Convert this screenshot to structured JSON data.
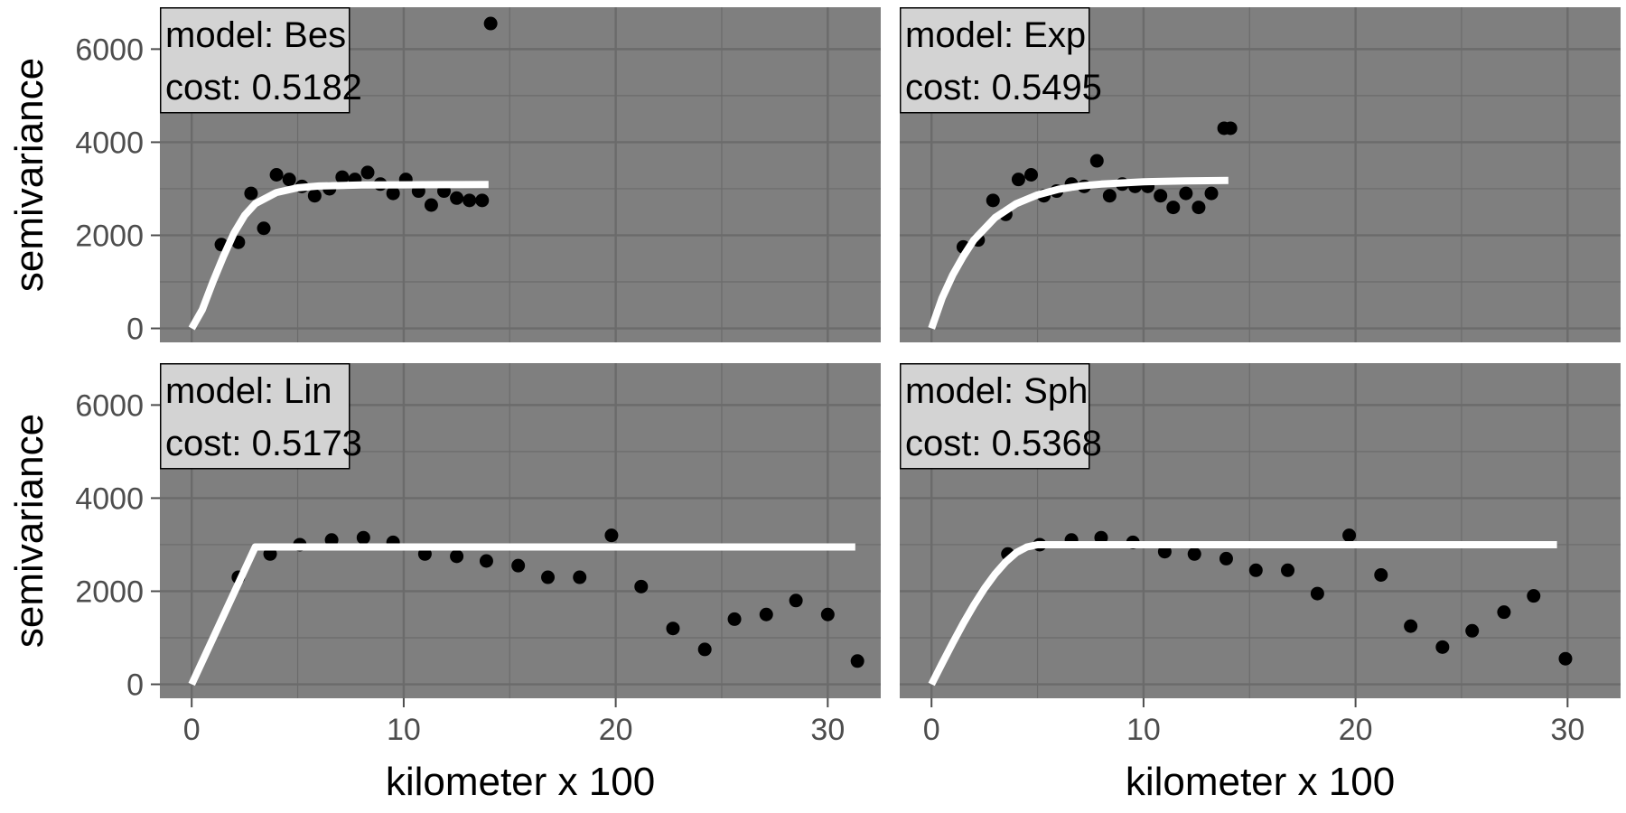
{
  "chart_data": [
    {
      "type": "scatter",
      "model_label": "model: Bes",
      "cost_label": "cost: 0.5182",
      "ylabel": "semivariance",
      "xlabel": "",
      "xlim": [
        -1.5,
        32.5
      ],
      "ylim": [
        -300,
        6900
      ],
      "x_ticks": [
        0,
        10,
        20,
        30
      ],
      "y_ticks": [
        0,
        2000,
        4000,
        6000
      ],
      "grid": true,
      "series": [
        {
          "kind": "points",
          "x": [
            1.4,
            2.2,
            2.8,
            3.4,
            4.0,
            4.6,
            5.2,
            5.8,
            6.5,
            7.1,
            7.7,
            8.3,
            8.9,
            9.5,
            10.1,
            10.7,
            11.3,
            11.9,
            12.5,
            13.1,
            13.7,
            14.1
          ],
          "y": [
            1800,
            1850,
            2900,
            2150,
            3300,
            3200,
            3050,
            2850,
            3000,
            3250,
            3200,
            3350,
            3100,
            2900,
            3200,
            2950,
            2650,
            2950,
            2800,
            2750,
            2750,
            6550
          ]
        },
        {
          "kind": "fit",
          "x": [
            0,
            0.5,
            1,
            1.5,
            2,
            2.5,
            3,
            4,
            5,
            6,
            8,
            10,
            12,
            14
          ],
          "y": [
            0,
            400,
            1000,
            1550,
            2050,
            2430,
            2680,
            2920,
            3020,
            3060,
            3080,
            3085,
            3088,
            3090
          ]
        }
      ]
    },
    {
      "type": "scatter",
      "model_label": "model: Exp",
      "cost_label": "cost: 0.5495",
      "ylabel": "",
      "xlabel": "",
      "xlim": [
        -1.5,
        32.5
      ],
      "ylim": [
        -300,
        6900
      ],
      "x_ticks": [
        0,
        10,
        20,
        30
      ],
      "y_ticks": [
        0,
        2000,
        4000,
        6000
      ],
      "grid": true,
      "series": [
        {
          "kind": "points",
          "x": [
            1.5,
            2.2,
            2.9,
            3.5,
            4.1,
            4.7,
            5.3,
            5.9,
            6.6,
            7.2,
            7.8,
            8.4,
            9.0,
            9.6,
            10.2,
            10.8,
            11.4,
            12.0,
            12.6,
            13.2,
            13.8,
            14.1
          ],
          "y": [
            1750,
            1900,
            2750,
            2450,
            3200,
            3300,
            2850,
            2950,
            3100,
            3050,
            3600,
            2850,
            3100,
            3050,
            3050,
            2850,
            2600,
            2900,
            2600,
            2900,
            4300,
            4300
          ]
        },
        {
          "kind": "fit",
          "x": [
            0,
            0.5,
            1,
            1.5,
            2,
            3,
            4,
            5,
            6,
            7,
            8,
            10,
            12,
            14
          ],
          "y": [
            0,
            650,
            1150,
            1550,
            1900,
            2380,
            2680,
            2870,
            2990,
            3060,
            3100,
            3150,
            3170,
            3180
          ]
        }
      ]
    },
    {
      "type": "scatter",
      "model_label": "model: Lin",
      "cost_label": "cost: 0.5173",
      "ylabel": "semivariance",
      "xlabel": "kilometer x 100",
      "xlim": [
        -1.5,
        32.5
      ],
      "ylim": [
        -300,
        6900
      ],
      "x_ticks": [
        0,
        10,
        20,
        30
      ],
      "y_ticks": [
        0,
        2000,
        4000,
        6000
      ],
      "grid": true,
      "series": [
        {
          "kind": "points",
          "x": [
            2.2,
            3.7,
            5.1,
            6.6,
            8.1,
            9.5,
            11.0,
            12.5,
            13.9,
            15.4,
            16.8,
            18.3,
            19.8,
            21.2,
            22.7,
            24.2,
            25.6,
            27.1,
            28.5,
            30.0,
            31.4
          ],
          "y": [
            2300,
            2800,
            3000,
            3100,
            3150,
            3050,
            2800,
            2750,
            2650,
            2550,
            2300,
            2300,
            3200,
            2100,
            1200,
            750,
            1400,
            1500,
            1800,
            1500,
            500
          ]
        },
        {
          "kind": "fit",
          "x": [
            0,
            3,
            31.3
          ],
          "y": [
            0,
            2950,
            2950
          ]
        }
      ]
    },
    {
      "type": "scatter",
      "model_label": "model: Sph",
      "cost_label": "cost: 0.5368",
      "ylabel": "",
      "xlabel": "kilometer x 100",
      "xlim": [
        -1.5,
        32.5
      ],
      "ylim": [
        -300,
        6900
      ],
      "x_ticks": [
        0,
        10,
        20,
        30
      ],
      "y_ticks": [
        0,
        2000,
        4000,
        6000
      ],
      "grid": true,
      "series": [
        {
          "kind": "points",
          "x": [
            3.6,
            5.1,
            6.6,
            8.0,
            9.5,
            11.0,
            12.4,
            13.9,
            15.3,
            16.8,
            18.2,
            19.7,
            21.2,
            22.6,
            24.1,
            25.5,
            27.0,
            28.4,
            29.9
          ],
          "y": [
            2800,
            3000,
            3100,
            3150,
            3050,
            2850,
            2800,
            2700,
            2450,
            2450,
            1950,
            3200,
            2350,
            1250,
            800,
            1150,
            1550,
            1900,
            550
          ]
        },
        {
          "kind": "fit",
          "x": [
            0,
            0.5,
            1,
            1.5,
            2,
            2.5,
            3,
            3.5,
            4,
            4.5,
            5,
            29.5
          ],
          "y": [
            0,
            450,
            890,
            1310,
            1700,
            2060,
            2370,
            2630,
            2830,
            2950,
            3000,
            3000
          ]
        }
      ]
    }
  ],
  "colors": {
    "panel_background": "#7f7f7f",
    "grid": "#6b6b6b",
    "points": "#000000",
    "fit_line": "#ffffff",
    "label_box": "#d3d3d3"
  }
}
